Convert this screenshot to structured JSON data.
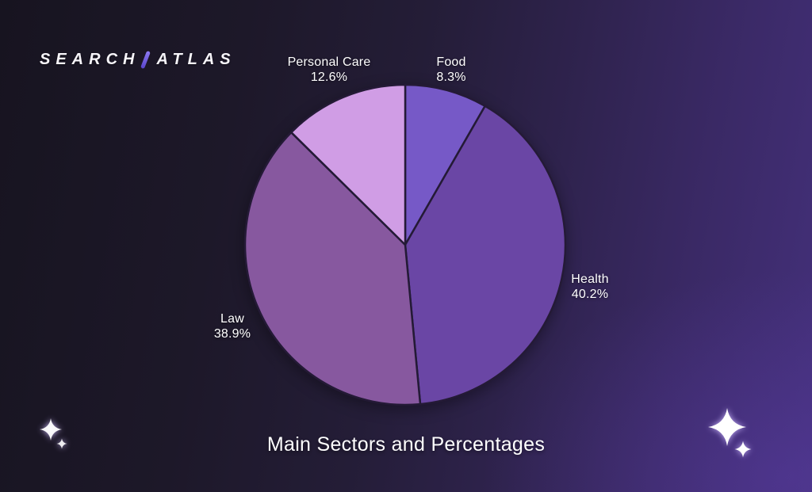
{
  "logo": {
    "part1": "SEARCH",
    "part2": "ATLAS",
    "slash_color_top": "#8f7cf5",
    "slash_color_bottom": "#5742c8",
    "text_color": "#f7f5fa"
  },
  "chart_data": {
    "type": "pie",
    "title": "Main Sectors and Percentages",
    "direction": "clockwise",
    "start_angle_deg": 0,
    "legend": "none",
    "labels_position": "outside",
    "label_color": "#ffffff",
    "stroke_color": "#241a36",
    "background_gradient": [
      "#171420",
      "#44307b"
    ],
    "slices": [
      {
        "label": "Food",
        "value": 8.3,
        "pct_label": "8.3%",
        "color": "#7659c7"
      },
      {
        "label": "Health",
        "value": 40.2,
        "pct_label": "40.2%",
        "color": "#6a46a5"
      },
      {
        "label": "Law",
        "value": 38.9,
        "pct_label": "38.9%",
        "color": "#87589f"
      },
      {
        "label": "Personal Care",
        "value": 12.6,
        "pct_label": "12.6%",
        "color": "#d09de5"
      }
    ]
  },
  "decorations": {
    "sparkle_color": "#ffffff"
  }
}
